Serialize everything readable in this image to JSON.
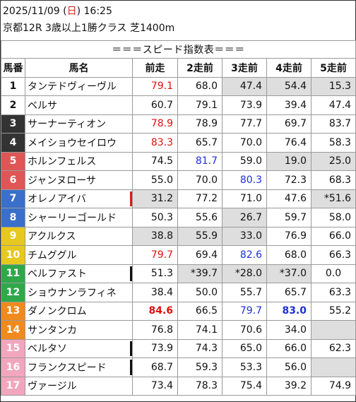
{
  "header": {
    "date_prefix": "2025/11/09 (",
    "weekday": "日",
    "date_suffix": ") 16:25",
    "race": "京都12R 3歳以上1勝クラス 芝1400m"
  },
  "table_title": "＝＝＝スピード指数表＝＝＝",
  "columns": [
    "馬番",
    "馬名",
    "前走",
    "2走前",
    "3走前",
    "4走前",
    "5走前"
  ],
  "colors": {
    "waku1": "#ffffff",
    "waku2": "#ffffff",
    "waku3": "#333333",
    "waku4": "#333333",
    "waku5": "#e05555",
    "waku6": "#e05555",
    "waku7": "#3a6fcc",
    "waku8": "#3a6fcc",
    "waku9": "#e6c81e",
    "waku10": "#e6c81e",
    "waku11": "#2fa84a",
    "waku12": "#2fa84a",
    "waku13": "#f08a1e",
    "waku14": "#f08a1e",
    "waku15": "#f2a6be",
    "waku16": "#f2a6be",
    "waku17": "#f2a6be",
    "red_text": "#e01010",
    "blue_text": "#1e2fd8",
    "gray_cell": "#dedede"
  },
  "rows": [
    {
      "no": "1",
      "name": "タンテドヴィーヴル",
      "bg": "#ffffff",
      "fg": "#111111",
      "mark": "",
      "v": [
        {
          "t": "79.1",
          "c": "red"
        },
        {
          "t": "68.0"
        },
        {
          "t": "47.4",
          "g": 1
        },
        {
          "t": "54.4",
          "g": 1
        },
        {
          "t": "15.3",
          "g": 1
        }
      ]
    },
    {
      "no": "2",
      "name": "ベルサ",
      "bg": "#ffffff",
      "fg": "#111111",
      "mark": "",
      "v": [
        {
          "t": "60.7"
        },
        {
          "t": "79.1"
        },
        {
          "t": "73.9"
        },
        {
          "t": "39.4"
        },
        {
          "t": "47.4"
        }
      ]
    },
    {
      "no": "3",
      "name": "サーナーティオン",
      "bg": "#333333",
      "fg": "#ffffff",
      "mark": "",
      "v": [
        {
          "t": "78.9",
          "c": "red"
        },
        {
          "t": "78.9"
        },
        {
          "t": "77.7"
        },
        {
          "t": "69.7"
        },
        {
          "t": "83.7"
        }
      ]
    },
    {
      "no": "4",
      "name": "メイショウセイロウ",
      "bg": "#333333",
      "fg": "#ffffff",
      "mark": "",
      "v": [
        {
          "t": "83.3",
          "c": "red"
        },
        {
          "t": "65.7"
        },
        {
          "t": "70.0"
        },
        {
          "t": "76.4"
        },
        {
          "t": "58.3"
        }
      ]
    },
    {
      "no": "5",
      "name": "ホルンフェルス",
      "bg": "#e05555",
      "fg": "#ffffff",
      "mark": "",
      "v": [
        {
          "t": "74.5"
        },
        {
          "t": "81.7",
          "c": "blue"
        },
        {
          "t": "59.0"
        },
        {
          "t": "19.0",
          "g": 1
        },
        {
          "t": "25.0",
          "g": 1
        }
      ]
    },
    {
      "no": "6",
      "name": "ジャンヌローサ",
      "bg": "#e05555",
      "fg": "#ffffff",
      "mark": "",
      "v": [
        {
          "t": "55.0"
        },
        {
          "t": "70.0"
        },
        {
          "t": "80.3",
          "c": "blue"
        },
        {
          "t": "72.3"
        },
        {
          "t": "68.3"
        }
      ]
    },
    {
      "no": "7",
      "name": "オレノアイバ",
      "bg": "#3a6fcc",
      "fg": "#ffffff",
      "mark": "red",
      "v": [
        {
          "t": "31.2",
          "g": 1
        },
        {
          "t": "77.2"
        },
        {
          "t": "71.0"
        },
        {
          "t": "47.6"
        },
        {
          "t": "*51.6",
          "g": 1
        }
      ]
    },
    {
      "no": "8",
      "name": "シャーリーゴールド",
      "bg": "#3a6fcc",
      "fg": "#ffffff",
      "mark": "",
      "v": [
        {
          "t": "50.3"
        },
        {
          "t": "55.6"
        },
        {
          "t": "26.7",
          "g": 1
        },
        {
          "t": "59.7"
        },
        {
          "t": "58.0"
        }
      ]
    },
    {
      "no": "9",
      "name": "アクルクス",
      "bg": "#e6c81e",
      "fg": "#ffffff",
      "mark": "",
      "v": [
        {
          "t": "38.8",
          "g": 1
        },
        {
          "t": "55.9",
          "g": 1
        },
        {
          "t": "33.0",
          "g": 1
        },
        {
          "t": "76.9"
        },
        {
          "t": "66.0"
        }
      ]
    },
    {
      "no": "10",
      "name": "チムググル",
      "bg": "#e6c81e",
      "fg": "#ffffff",
      "mark": "",
      "v": [
        {
          "t": "79.7",
          "c": "red"
        },
        {
          "t": "69.4"
        },
        {
          "t": "82.6",
          "c": "blue"
        },
        {
          "t": "68.0"
        },
        {
          "t": "66.3"
        }
      ]
    },
    {
      "no": "11",
      "name": "ベルファスト",
      "bg": "#2fa84a",
      "fg": "#ffffff",
      "mark": "black",
      "v": [
        {
          "t": "51.3"
        },
        {
          "t": "*39.7",
          "g": 1
        },
        {
          "t": "*28.0",
          "g": 1
        },
        {
          "t": "*37.0",
          "g": 1
        },
        {
          "t": "0.0",
          "ctr": 1
        }
      ]
    },
    {
      "no": "12",
      "name": "ショウナンラフィネ",
      "bg": "#2fa84a",
      "fg": "#ffffff",
      "mark": "",
      "v": [
        {
          "t": "38.4"
        },
        {
          "t": "50.0"
        },
        {
          "t": "55.7"
        },
        {
          "t": "65.7"
        },
        {
          "t": "63.3"
        }
      ]
    },
    {
      "no": "13",
      "name": "ダノンクロム",
      "bg": "#f08a1e",
      "fg": "#ffffff",
      "mark": "",
      "v": [
        {
          "t": "84.6",
          "c": "red",
          "b": 1
        },
        {
          "t": "66.5"
        },
        {
          "t": "79.7",
          "c": "blue"
        },
        {
          "t": "83.0",
          "c": "blue",
          "b": 1
        },
        {
          "t": "55.2"
        }
      ]
    },
    {
      "no": "14",
      "name": "サンタンカ",
      "bg": "#f08a1e",
      "fg": "#ffffff",
      "mark": "",
      "v": [
        {
          "t": "76.8"
        },
        {
          "t": "74.1"
        },
        {
          "t": "70.6"
        },
        {
          "t": "34.0"
        },
        {
          "t": "",
          "g": 1
        }
      ]
    },
    {
      "no": "15",
      "name": "ベルタソ",
      "bg": "#f2a6be",
      "fg": "#ffffff",
      "mark": "black",
      "v": [
        {
          "t": "73.9"
        },
        {
          "t": "74.3"
        },
        {
          "t": "65.0"
        },
        {
          "t": "66.0"
        },
        {
          "t": "62.3"
        }
      ]
    },
    {
      "no": "16",
      "name": "フランクスピード",
      "bg": "#f2a6be",
      "fg": "#ffffff",
      "mark": "black",
      "v": [
        {
          "t": "68.7"
        },
        {
          "t": "59.3"
        },
        {
          "t": "53.3"
        },
        {
          "t": "56.0"
        },
        {
          "t": "",
          "g": 1
        }
      ]
    },
    {
      "no": "17",
      "name": "ヴァージル",
      "bg": "#f2a6be",
      "fg": "#ffffff",
      "mark": "",
      "v": [
        {
          "t": "73.4"
        },
        {
          "t": "78.3"
        },
        {
          "t": "75.4"
        },
        {
          "t": "39.2"
        },
        {
          "t": "74.9"
        }
      ]
    }
  ]
}
